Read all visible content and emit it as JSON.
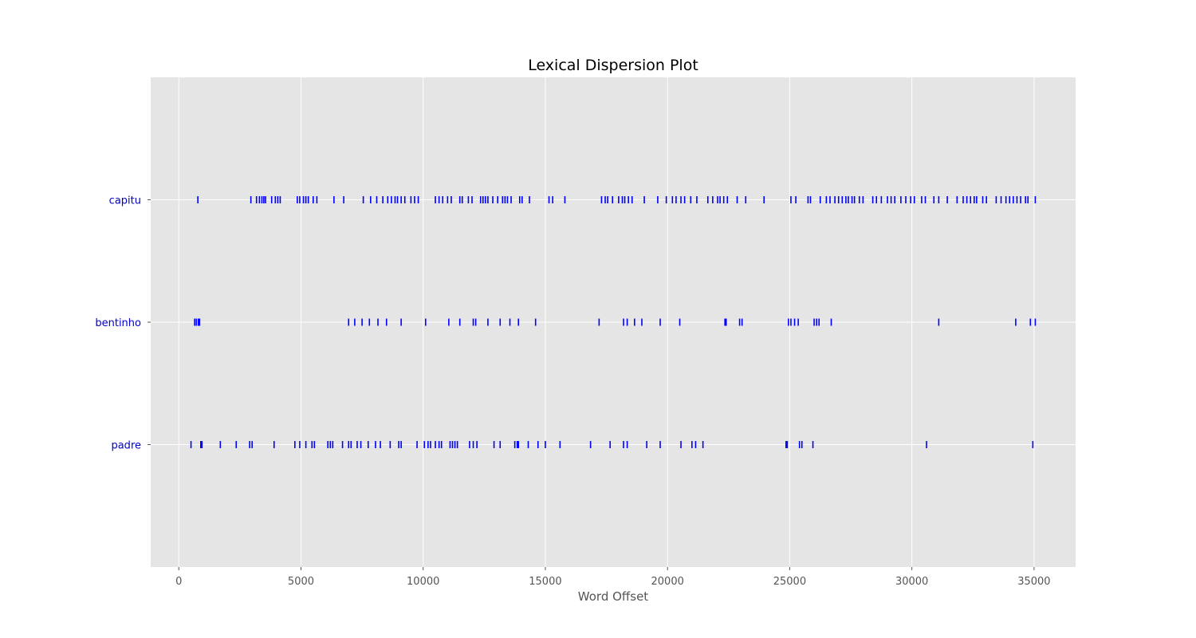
{
  "chart_data": {
    "type": "scatter",
    "title": "Lexical Dispersion Plot",
    "xlabel": "Word Offset",
    "ylabel": "",
    "xlim": [
      -1150,
      36700
    ],
    "x_ticks": [
      0,
      5000,
      10000,
      15000,
      20000,
      25000,
      30000,
      35000
    ],
    "x_tick_labels": [
      "0",
      "5000",
      "10000",
      "15000",
      "20000",
      "25000",
      "30000",
      "35000"
    ],
    "grid": true,
    "marker": "|",
    "colors": {
      "marker": "#0000ff",
      "axes_bg": "#e5e5e5",
      "grid": "#ffffff",
      "ytick_label": "#0000cc"
    },
    "categories": [
      "capitu",
      "bentinho",
      "padre"
    ],
    "series": [
      {
        "name": "capitu",
        "x": [
          780,
          2950,
          3180,
          3300,
          3400,
          3480,
          3550,
          3800,
          3950,
          4050,
          4150,
          4850,
          4950,
          5100,
          5200,
          5300,
          5500,
          5650,
          6350,
          6750,
          7550,
          7850,
          8100,
          8350,
          8550,
          8700,
          8850,
          8950,
          9100,
          9250,
          9500,
          9650,
          9800,
          10500,
          10650,
          10800,
          11000,
          11150,
          11500,
          11600,
          11850,
          12000,
          12350,
          12450,
          12550,
          12650,
          12850,
          13050,
          13250,
          13350,
          13450,
          13600,
          13950,
          14050,
          14350,
          15150,
          15300,
          15800,
          17300,
          17450,
          17550,
          17750,
          18000,
          18150,
          18250,
          18400,
          18550,
          19050,
          19600,
          19950,
          20200,
          20350,
          20550,
          20700,
          20950,
          21200,
          21650,
          21850,
          22050,
          22150,
          22300,
          22450,
          22850,
          23200,
          23950,
          25050,
          25250,
          25750,
          25850,
          26250,
          26500,
          26650,
          26850,
          27000,
          27150,
          27300,
          27400,
          27550,
          27650,
          27850,
          28000,
          28400,
          28550,
          28750,
          29000,
          29150,
          29300,
          29550,
          29750,
          29950,
          30100,
          30400,
          30550,
          30900,
          31100,
          31450,
          31850,
          32100,
          32250,
          32400,
          32550,
          32650,
          32900,
          33050,
          33450,
          33650,
          33850,
          34000,
          34150,
          34300,
          34450,
          34650,
          34750,
          35050
        ]
      },
      {
        "name": "bentinho",
        "x": [
          650,
          720,
          800,
          850,
          6950,
          7200,
          7500,
          7800,
          8150,
          8500,
          9100,
          10100,
          11050,
          11500,
          12050,
          12150,
          12650,
          13150,
          13550,
          13900,
          14600,
          17200,
          18200,
          18350,
          18650,
          18950,
          19700,
          20500,
          22350,
          22400,
          22950,
          23050,
          24950,
          25050,
          25200,
          25350,
          26000,
          26100,
          26200,
          26700,
          31100,
          34250,
          34850,
          35050
        ]
      },
      {
        "name": "padre",
        "x": [
          500,
          900,
          950,
          1700,
          2350,
          2900,
          3000,
          3900,
          4750,
          4950,
          5200,
          5450,
          5550,
          6100,
          6200,
          6300,
          6700,
          6950,
          7050,
          7300,
          7450,
          7750,
          8050,
          8250,
          8650,
          9000,
          9100,
          9750,
          10050,
          10200,
          10300,
          10500,
          10650,
          10750,
          11100,
          11200,
          11300,
          11400,
          11900,
          12050,
          12200,
          12900,
          13150,
          13750,
          13850,
          13900,
          14300,
          14700,
          15000,
          15600,
          16850,
          17650,
          18200,
          18350,
          19150,
          19700,
          20550,
          21000,
          21150,
          21450,
          24850,
          24900,
          25400,
          25500,
          25950,
          30600,
          34950
        ]
      }
    ]
  }
}
